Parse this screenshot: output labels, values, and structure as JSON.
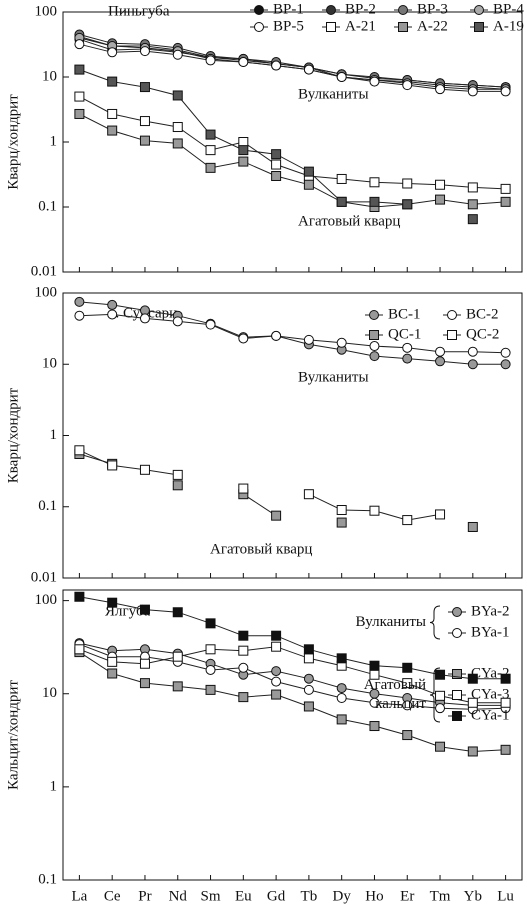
{
  "chart_data": [
    {
      "type": "line",
      "title": "Пиньгуба",
      "ylabel": "Кварц/хондрит",
      "log_scale": true,
      "categories": [
        null,
        null,
        null,
        null,
        null,
        null,
        null,
        null,
        null,
        null,
        null,
        null,
        null,
        null
      ],
      "ylim": [
        0.01,
        100
      ],
      "yticks": [
        0.01,
        0.1,
        1,
        10,
        100
      ],
      "legend": "upper right",
      "annotations": [
        "Вулканиты",
        "Агатовый кварц"
      ],
      "series": [
        {
          "name": "BP-1",
          "color": "#111111",
          "marker": "circle",
          "values": [
            42,
            30,
            30,
            26,
            20,
            19,
            16,
            14,
            11,
            9.5,
            9,
            8,
            7.5,
            7
          ]
        },
        {
          "name": "BP-2",
          "color": "#333333",
          "marker": "circle",
          "values": [
            38,
            26,
            27,
            24,
            20,
            18,
            16,
            14,
            10,
            9,
            8.5,
            7.5,
            7,
            6.5
          ]
        },
        {
          "name": "BP-3",
          "color": "#777777",
          "marker": "circle",
          "values": [
            45,
            33,
            32,
            28,
            21,
            19,
            17,
            14,
            11,
            10,
            9,
            8,
            7.5,
            7
          ]
        },
        {
          "name": "BP-4",
          "color": "#aaaaaa",
          "marker": "circle",
          "values": [
            40,
            30,
            28,
            25,
            19,
            17,
            15,
            13,
            10,
            9,
            8,
            7,
            6.5,
            6.5
          ]
        },
        {
          "name": "BP-5",
          "color": "#ffffff",
          "marker": "circle",
          "values": [
            32,
            24,
            25,
            22,
            18,
            17,
            15,
            13,
            10,
            8.5,
            7.5,
            6.5,
            6,
            6
          ]
        },
        {
          "name": "A-21",
          "color": "#ffffff",
          "marker": "square",
          "values": [
            5,
            2.7,
            2.1,
            1.7,
            0.75,
            1.0,
            0.45,
            0.3,
            0.27,
            0.24,
            0.23,
            0.22,
            0.2,
            0.19
          ]
        },
        {
          "name": "A-22",
          "color": "#999999",
          "marker": "square",
          "values": [
            2.7,
            1.5,
            1.05,
            0.95,
            0.4,
            0.5,
            0.3,
            0.22,
            0.12,
            0.1,
            0.11,
            0.13,
            0.11,
            0.12
          ]
        },
        {
          "name": "A-19",
          "color": "#555555",
          "marker": "square",
          "values": [
            13,
            8.5,
            7,
            5.2,
            1.3,
            0.75,
            0.65,
            0.35,
            0.12,
            0.12,
            0.11,
            null,
            0.065,
            null
          ]
        }
      ]
    },
    {
      "type": "line",
      "title": "о. Суйсари",
      "ylabel": "Кварц/хондрит",
      "log_scale": true,
      "categories": [
        null,
        null,
        null,
        null,
        null,
        null,
        null,
        null,
        null,
        null,
        null,
        null,
        null,
        null
      ],
      "ylim": [
        0.01,
        100
      ],
      "yticks": [
        0.01,
        0.1,
        1,
        10,
        100
      ],
      "legend": "upper right",
      "annotations": [
        "Вулканиты",
        "Агатовый кварц"
      ],
      "series": [
        {
          "name": "BC-1",
          "color": "#999999",
          "marker": "circle",
          "values": [
            75,
            68,
            57,
            48,
            37,
            24,
            25,
            19,
            16,
            13,
            12,
            11,
            10,
            10
          ]
        },
        {
          "name": "BC-2",
          "color": "#ffffff",
          "marker": "circle",
          "values": [
            48,
            50,
            44,
            40,
            36,
            23,
            25,
            22,
            20,
            18,
            17,
            15,
            15,
            14.5
          ]
        },
        {
          "name": "QC-1",
          "color": "#999999",
          "marker": "square",
          "values": [
            0.55,
            0.4,
            null,
            0.2,
            null,
            0.15,
            0.075,
            null,
            0.06,
            null,
            null,
            null,
            0.052,
            null
          ]
        },
        {
          "name": "QC-2",
          "color": "#ffffff",
          "marker": "square",
          "values": [
            0.62,
            0.38,
            0.33,
            0.28,
            null,
            0.18,
            null,
            0.15,
            0.09,
            0.088,
            0.065,
            0.078,
            null,
            null
          ]
        }
      ]
    },
    {
      "type": "line",
      "title": "Ялгуба",
      "ylabel": "Кальцит/хондрит",
      "log_scale": true,
      "categories": [
        "La",
        "Ce",
        "Pr",
        "Nd",
        "Sm",
        "Eu",
        "Gd",
        "Tb",
        "Dy",
        "Ho",
        "Er",
        "Tm",
        "Yb",
        "Lu"
      ],
      "ylim": [
        0.1,
        130
      ],
      "yticks": [
        0.1,
        1,
        10,
        100
      ],
      "legend": "upper right",
      "legend_groups": [
        {
          "lines": [
            "Вулканиты"
          ]
        },
        {
          "lines": [
            "Агатовый",
            "кальцит"
          ]
        }
      ],
      "series": [
        {
          "name": "BYa-2",
          "color": "#999999",
          "marker": "circle",
          "values": [
            35,
            29,
            30,
            27,
            21,
            16,
            17.5,
            14.5,
            11.5,
            10,
            9,
            8,
            7.5,
            7.5
          ]
        },
        {
          "name": "BYa-1",
          "color": "#ffffff",
          "marker": "circle",
          "values": [
            34,
            25,
            25,
            22,
            18,
            19,
            13.5,
            11,
            9,
            8,
            7.5,
            7,
            6.8,
            7
          ]
        },
        {
          "name": "CYa-2",
          "color": "#999999",
          "marker": "square",
          "values": [
            28,
            16.5,
            13,
            12,
            11,
            9.2,
            9.8,
            7.3,
            5.3,
            4.5,
            3.6,
            2.7,
            2.4,
            2.5
          ]
        },
        {
          "name": "CYa-3",
          "color": "#ffffff",
          "marker": "square",
          "values": [
            30,
            22,
            21,
            25,
            30,
            29,
            32,
            24,
            20,
            16,
            13,
            9.5,
            8,
            8
          ]
        },
        {
          "name": "CYa-1",
          "color": "#111111",
          "marker": "square",
          "values": [
            110,
            95,
            80,
            75,
            57,
            42,
            42,
            30,
            24,
            20,
            19,
            16,
            14.5,
            14.5
          ]
        }
      ]
    }
  ]
}
